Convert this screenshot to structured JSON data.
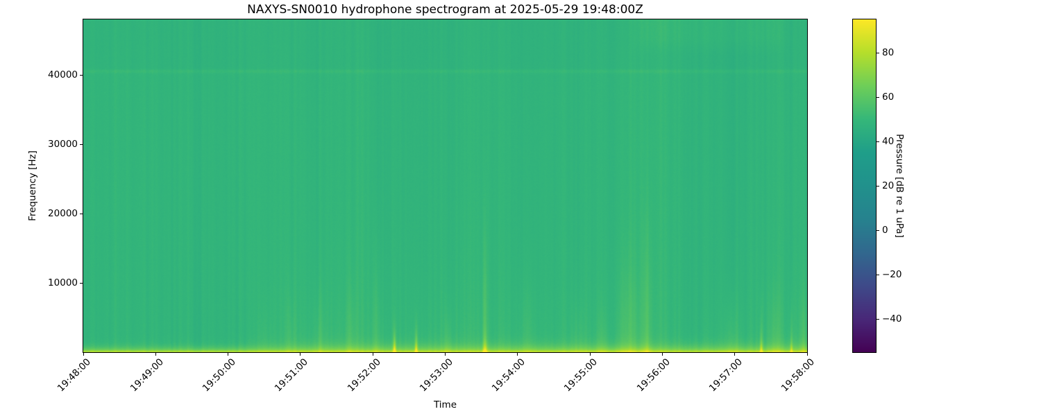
{
  "chart_data": {
    "type": "heatmap",
    "subtype": "spectrogram",
    "title": "NAXYS-SN0010 hydrophone spectrogram at 2025-05-29 19:48:00Z",
    "xlabel": "Time",
    "ylabel": "Frequency [Hz]",
    "x_tick_labels": [
      "19:48:00",
      "19:49:00",
      "19:50:00",
      "19:51:00",
      "19:52:00",
      "19:53:00",
      "19:54:00",
      "19:55:00",
      "19:56:00",
      "19:57:00",
      "19:58:00"
    ],
    "time_span_s": 600,
    "freq_range_hz": [
      0,
      48000
    ],
    "y_ticks": [
      {
        "value": 10000,
        "label": "10000"
      },
      {
        "value": 20000,
        "label": "20000"
      },
      {
        "value": 30000,
        "label": "30000"
      },
      {
        "value": 40000,
        "label": "40000"
      }
    ],
    "colorbar": {
      "label": "Pressure [dB re 1 uPa]",
      "value_range_db": [
        -55,
        95
      ],
      "ticks": [
        {
          "value": 80,
          "label": "80"
        },
        {
          "value": 60,
          "label": "60"
        },
        {
          "value": 40,
          "label": "40"
        },
        {
          "value": 20,
          "label": "20"
        },
        {
          "value": 0,
          "label": "0"
        },
        {
          "value": -20,
          "label": "−20"
        },
        {
          "value": -40,
          "label": "−40"
        }
      ]
    },
    "colormap": "viridis",
    "colormap_stops": [
      [
        0.0,
        "#440154"
      ],
      [
        0.1,
        "#482878"
      ],
      [
        0.2,
        "#3e4a89"
      ],
      [
        0.3,
        "#31688e"
      ],
      [
        0.4,
        "#26828e"
      ],
      [
        0.5,
        "#21918c"
      ],
      [
        0.6,
        "#1f9e89"
      ],
      [
        0.7,
        "#35b779"
      ],
      [
        0.8,
        "#6ece58"
      ],
      [
        0.9,
        "#b5de2b"
      ],
      [
        1.0,
        "#fde725"
      ]
    ],
    "field": {
      "background_db": 48.5,
      "striation_noise_db": 1.7,
      "pixel_noise_db": 1.6,
      "low_freq_wash": {
        "boost_db": 2.0,
        "variable_db": 1.6,
        "freq_scale_hz": 9000,
        "ramp_start_s": 120,
        "ramp_end_s": 200
      },
      "surface_band": {
        "peak_boost_db": 28,
        "freq_scale_hz": 700,
        "very_bottom_extra_db": 4,
        "very_bottom_f_hz": 280
      },
      "tonal_line": {
        "freq_hz": 40500,
        "boost_db": 2.3,
        "width_hz": 300
      },
      "above_line_drop_db": 0.8,
      "hf_patch": {
        "t0_s": 452,
        "t1_s": 588,
        "f_min_hz": 42800,
        "boost_db": 2.2
      },
      "quiet_column": {
        "center_s": 501,
        "half_width_s": 18,
        "drop_db": 2.2
      },
      "events": [
        {
          "t_s": 150,
          "width_s": 12,
          "f_top_hz": 9000,
          "boost_db": 2.2,
          "bottom_db": 0
        },
        {
          "t_s": 172,
          "width_s": 9,
          "f_top_hz": 11000,
          "boost_db": 3.8,
          "bottom_db": 0
        },
        {
          "t_s": 196,
          "width_s": 9,
          "f_top_hz": 12000,
          "boost_db": 4.2,
          "bottom_db": 0
        },
        {
          "t_s": 222,
          "width_s": 8,
          "f_top_hz": 14000,
          "boost_db": 4.2,
          "bottom_db": 1
        },
        {
          "t_s": 243,
          "width_s": 6,
          "f_top_hz": 21000,
          "boost_db": 5.0,
          "bottom_db": 2
        },
        {
          "t_s": 258,
          "width_s": 2.2,
          "f_top_hz": 5500,
          "boost_db": 7.0,
          "bottom_db": 26
        },
        {
          "t_s": 276,
          "width_s": 2.2,
          "f_top_hz": 6500,
          "boost_db": 7.0,
          "bottom_db": 24
        },
        {
          "t_s": 302,
          "width_s": 6,
          "f_top_hz": 9000,
          "boost_db": 4.0,
          "bottom_db": 2
        },
        {
          "t_s": 333,
          "width_s": 3.5,
          "f_top_hz": 24000,
          "boost_db": 8.0,
          "bottom_db": 20
        },
        {
          "t_s": 368,
          "width_s": 12,
          "f_top_hz": 15000,
          "boost_db": 3.2,
          "bottom_db": 0
        },
        {
          "t_s": 410,
          "width_s": 12,
          "f_top_hz": 11000,
          "boost_db": 3.2,
          "bottom_db": 1
        },
        {
          "t_s": 430,
          "width_s": 10,
          "f_top_hz": 9000,
          "boost_db": 3.5,
          "bottom_db": 1
        },
        {
          "t_s": 452,
          "width_s": 16,
          "f_top_hz": 19000,
          "boost_db": 5.5,
          "bottom_db": 2
        },
        {
          "t_s": 467,
          "width_s": 7,
          "f_top_hz": 26000,
          "boost_db": 7.0,
          "bottom_db": 4
        },
        {
          "t_s": 538,
          "width_s": 12,
          "f_top_hz": 12000,
          "boost_db": 4.5,
          "bottom_db": 2
        },
        {
          "t_s": 562,
          "width_s": 2.2,
          "f_top_hz": 9000,
          "boost_db": 6.0,
          "bottom_db": 20
        },
        {
          "t_s": 574,
          "width_s": 10,
          "f_top_hz": 13000,
          "boost_db": 4.5,
          "bottom_db": 2
        },
        {
          "t_s": 587,
          "width_s": 2.2,
          "f_top_hz": 11000,
          "boost_db": 6.0,
          "bottom_db": 17
        },
        {
          "t_s": 597,
          "width_s": 6,
          "f_top_hz": 14000,
          "boost_db": 5.0,
          "bottom_db": 3
        }
      ]
    }
  }
}
